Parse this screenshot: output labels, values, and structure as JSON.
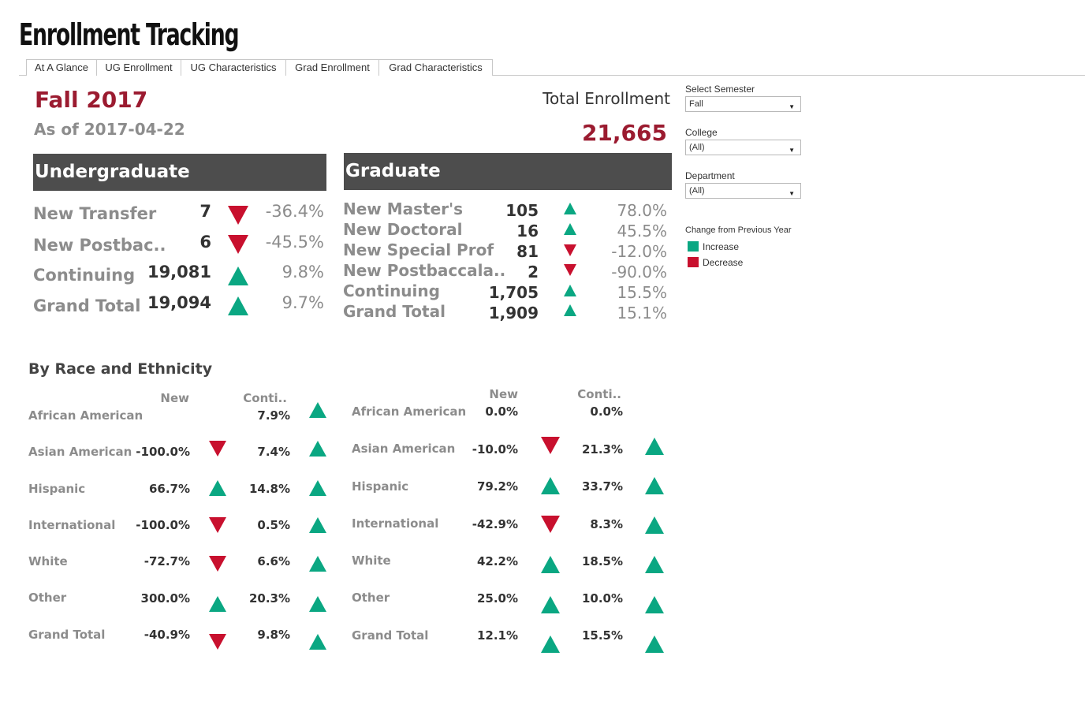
{
  "app": {
    "title": "Enrollment Tracking"
  },
  "tabs": [
    {
      "label": "At A Glance"
    },
    {
      "label": "UG Enrollment"
    },
    {
      "label": "UG Characteristics"
    },
    {
      "label": "Grad Enrollment"
    },
    {
      "label": "Grad Characteristics"
    }
  ],
  "header": {
    "semester": "Fall 2017",
    "as_of": "As of 2017-04-22",
    "total_label": "Total Enrollment",
    "total_value": "21,665"
  },
  "undergraduate": {
    "title": "Undergraduate",
    "rows": [
      {
        "label": "New Transfer",
        "count": "7",
        "change": "-36.4%",
        "direction": "down"
      },
      {
        "label": "New Postbac..",
        "count": "6",
        "change": "-45.5%",
        "direction": "down"
      },
      {
        "label": "Continuing",
        "count": "19,081",
        "change": "9.8%",
        "direction": "up"
      },
      {
        "label": "Grand Total",
        "count": "19,094",
        "change": "9.7%",
        "direction": "up"
      }
    ]
  },
  "graduate": {
    "title": "Graduate",
    "rows": [
      {
        "label": "New Master's",
        "count": "105",
        "change": "78.0%",
        "direction": "up"
      },
      {
        "label": "New Doctoral",
        "count": "16",
        "change": "45.5%",
        "direction": "up"
      },
      {
        "label": "New Special Prof",
        "count": "81",
        "change": "-12.0%",
        "direction": "down"
      },
      {
        "label": "New Postbaccala..",
        "count": "2",
        "change": "-90.0%",
        "direction": "down"
      },
      {
        "label": "Continuing",
        "count": "1,705",
        "change": "15.5%",
        "direction": "up"
      },
      {
        "label": "Grand Total",
        "count": "1,909",
        "change": "15.1%",
        "direction": "up"
      }
    ]
  },
  "race": {
    "title": "By Race and Ethnicity",
    "col_new": "New",
    "col_cont": "Conti..",
    "undergraduate": [
      {
        "label": "African American",
        "new": "",
        "new_dir": "",
        "cont": "7.9%",
        "cont_dir": "up"
      },
      {
        "label": "Asian American",
        "new": "-100.0%",
        "new_dir": "down",
        "cont": "7.4%",
        "cont_dir": "up"
      },
      {
        "label": "Hispanic",
        "new": "66.7%",
        "new_dir": "up",
        "cont": "14.8%",
        "cont_dir": "up"
      },
      {
        "label": "International",
        "new": "-100.0%",
        "new_dir": "down",
        "cont": "0.5%",
        "cont_dir": "up"
      },
      {
        "label": "White",
        "new": "-72.7%",
        "new_dir": "down",
        "cont": "6.6%",
        "cont_dir": "up"
      },
      {
        "label": "Other",
        "new": "300.0%",
        "new_dir": "up",
        "cont": "20.3%",
        "cont_dir": "up"
      },
      {
        "label": "Grand Total",
        "new": "-40.9%",
        "new_dir": "down",
        "cont": "9.8%",
        "cont_dir": "up"
      }
    ],
    "graduate": [
      {
        "label": "African American",
        "new": "0.0%",
        "new_dir": "",
        "cont": "0.0%",
        "cont_dir": ""
      },
      {
        "label": "Asian American",
        "new": "-10.0%",
        "new_dir": "down",
        "cont": "21.3%",
        "cont_dir": "up"
      },
      {
        "label": "Hispanic",
        "new": "79.2%",
        "new_dir": "up",
        "cont": "33.7%",
        "cont_dir": "up"
      },
      {
        "label": "International",
        "new": "-42.9%",
        "new_dir": "down",
        "cont": "8.3%",
        "cont_dir": "up"
      },
      {
        "label": "White",
        "new": "42.2%",
        "new_dir": "up",
        "cont": "18.5%",
        "cont_dir": "up"
      },
      {
        "label": "Other",
        "new": "25.0%",
        "new_dir": "up",
        "cont": "10.0%",
        "cont_dir": "up"
      },
      {
        "label": "Grand Total",
        "new": "12.1%",
        "new_dir": "up",
        "cont": "15.5%",
        "cont_dir": "up"
      }
    ]
  },
  "filters": {
    "semester": {
      "label": "Select Semester",
      "value": "Fall"
    },
    "college": {
      "label": "College",
      "value": "(All)"
    },
    "department": {
      "label": "Department",
      "value": "(All)"
    }
  },
  "legend": {
    "title": "Change from Previous Year",
    "items": [
      {
        "label": "Increase",
        "color": "#0aa782"
      },
      {
        "label": "Decrease",
        "color": "#c8102e"
      }
    ]
  },
  "colors": {
    "brand": "#9b1b30",
    "increase": "#0aa782",
    "decrease": "#c8102e",
    "header_bg": "#4d4d4d"
  }
}
